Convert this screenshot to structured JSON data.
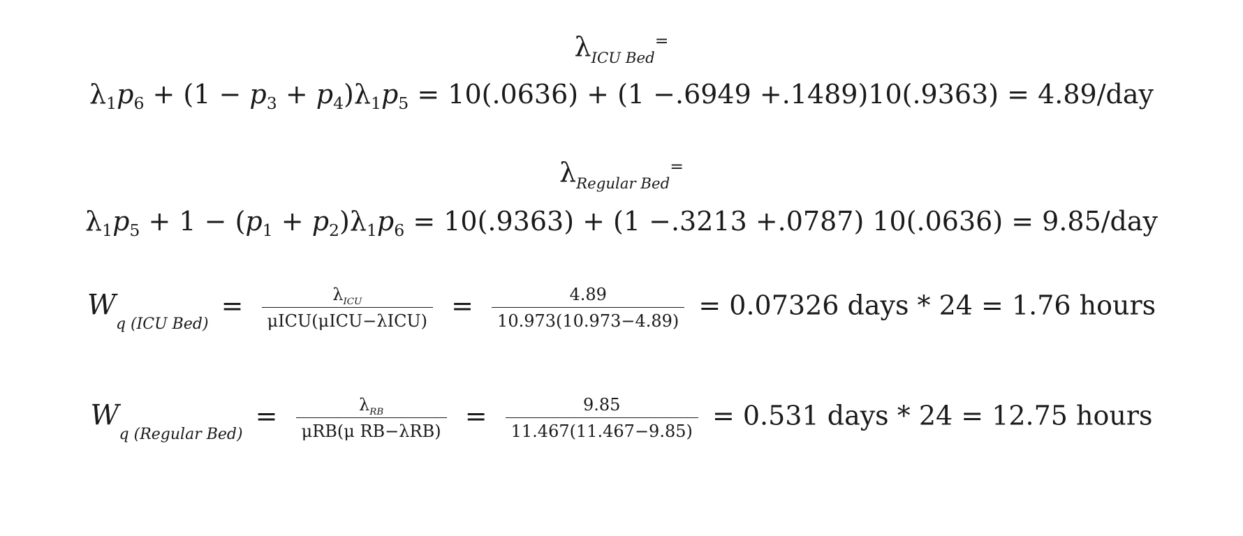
{
  "eq1": {
    "title_sym": "λ",
    "title_sub": "ICU Bed",
    "title_eq": "=",
    "lhs": "λ",
    "body": "= 10(.0636) + (1 −.6949 +.1489)10(.9363) = 4.89/day"
  },
  "eq2": {
    "title_sym": "λ",
    "title_sub": "Regular Bed",
    "title_eq": "=",
    "body": "= 10(.9363) + (1 −.3213 +.0787) 10(.0636) = 9.85/day"
  },
  "eq3": {
    "W": "W",
    "Wsub": "q (ICU Bed)",
    "frac1_num_sym": "λ",
    "frac1_num_sub": "ICU",
    "frac1_den": "μICU(μICU−λICU)",
    "frac2_num": "4.89",
    "frac2_den": "10.973(10.973−4.89)",
    "result": "= 0.07326 days * 24 = 1.76 hours"
  },
  "eq4": {
    "W": "W",
    "Wsub": "q (Regular Bed)",
    "frac1_num_sym": "λ",
    "frac1_num_sub": "RB",
    "frac1_den": "μRB(μ RB−λRB)",
    "frac2_num": "9.85",
    "frac2_den": "11.467(11.467−9.85)",
    "result": "= 0.531 days  * 24  = 12.75 hours"
  }
}
